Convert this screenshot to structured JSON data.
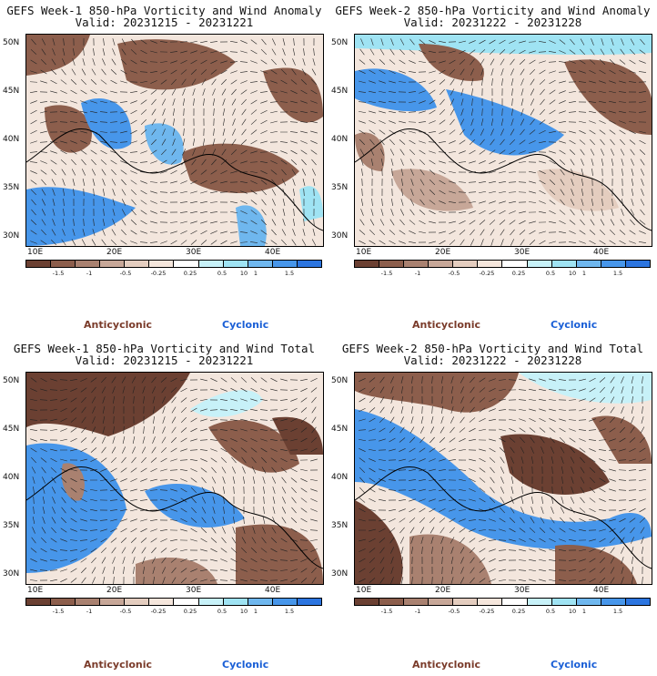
{
  "panels": [
    {
      "title": "GEFS Week-1 850-hPa Vorticity and Wind Anomaly",
      "valid": "Valid: 20231215 - 20231221"
    },
    {
      "title": "GEFS Week-2 850-hPa Vorticity and Wind Anomaly",
      "valid": "Valid: 20231222 - 20231228"
    },
    {
      "title": "GEFS Week-1 850-hPa Vorticity and Wind Total",
      "valid": "Valid: 20231215 - 20231221"
    },
    {
      "title": "GEFS Week-2 850-hPa Vorticity and Wind Total",
      "valid": "Valid: 20231222 - 20231228"
    }
  ],
  "axes": {
    "lat_labels": [
      "50N",
      "45N",
      "40N",
      "35N",
      "30N"
    ],
    "lon_labels": [
      "10E",
      "20E",
      "30E",
      "40E"
    ]
  },
  "colorbar": {
    "tick_labels": [
      "-1.5",
      "-1",
      "-0.5",
      "-0.25",
      "0.25",
      "0.5",
      "1",
      "1.5"
    ],
    "units_label": "10",
    "colors": [
      "#6b4032",
      "#8c5e4c",
      "#a98170",
      "#c7a798",
      "#e4cdbf",
      "#f5e6dc",
      "#ffffff",
      "#c7f1f8",
      "#9fe3f3",
      "#6fb7ee",
      "#4796ea",
      "#2c75e0"
    ]
  },
  "legend": {
    "anticyclonic": "Anticyclonic",
    "cyclonic": "Cyclonic"
  }
}
